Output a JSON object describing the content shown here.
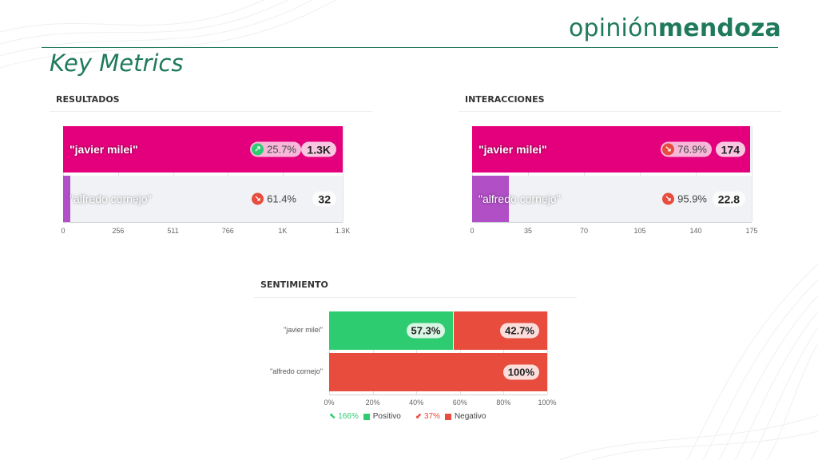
{
  "header": {
    "logo_light": "opinión",
    "logo_bold": "mendoza",
    "title": "Key Metrics"
  },
  "colors": {
    "brand_green": "#1f7a5c",
    "milei": "#e4007c",
    "cornejo": "#b04fc6",
    "positive": "#2ecc71",
    "negative": "#e74c3c",
    "up_arrow": "#2ecc71",
    "down_arrow": "#e74c3c"
  },
  "chart_data": [
    {
      "type": "bar",
      "title": "RESULTADOS",
      "orientation": "horizontal",
      "categories": [
        "\"javier milei\"",
        "\"alfredo cornejo\""
      ],
      "values": [
        1300,
        32
      ],
      "value_labels": [
        "1.3K",
        "32"
      ],
      "changes": [
        {
          "direction": "up",
          "label": "25.7%"
        },
        {
          "direction": "down",
          "label": "61.4%"
        }
      ],
      "xlim": [
        0,
        1300
      ],
      "ticks": [
        0,
        256,
        511,
        766,
        1021,
        1300
      ],
      "tick_labels": [
        "0",
        "256",
        "511",
        "766",
        "1K",
        "1.3K"
      ],
      "grid": true
    },
    {
      "type": "bar",
      "title": "INTERACCIONES",
      "orientation": "horizontal",
      "categories": [
        "\"javier milei\"",
        "\"alfredo cornejo\""
      ],
      "values": [
        174,
        22.8
      ],
      "value_labels": [
        "174",
        "22.8"
      ],
      "changes": [
        {
          "direction": "down",
          "label": "76.9%"
        },
        {
          "direction": "down",
          "label": "95.9%"
        }
      ],
      "xlim": [
        0,
        175
      ],
      "ticks": [
        0,
        35,
        70,
        105,
        140,
        175
      ],
      "tick_labels": [
        "0",
        "35",
        "70",
        "105",
        "140",
        "175"
      ],
      "grid": true
    },
    {
      "type": "bar",
      "title": "SENTIMIENTO",
      "orientation": "horizontal",
      "stacked": true,
      "categories": [
        "\"javier milei\"",
        "\"alfredo cornejo\""
      ],
      "series": [
        {
          "name": "Positivo",
          "values": [
            57.3,
            0
          ],
          "labels": [
            "57.3%",
            ""
          ],
          "change": {
            "direction": "up",
            "label": "166%"
          }
        },
        {
          "name": "Negativo",
          "values": [
            42.7,
            100
          ],
          "labels": [
            "42.7%",
            "100%"
          ],
          "change": {
            "direction": "down",
            "label": "37%"
          }
        }
      ],
      "xlim": [
        0,
        100
      ],
      "tick_labels": [
        "0%",
        "20%",
        "40%",
        "60%",
        "80%",
        "100%"
      ],
      "legend": "bottom",
      "grid": true
    }
  ]
}
